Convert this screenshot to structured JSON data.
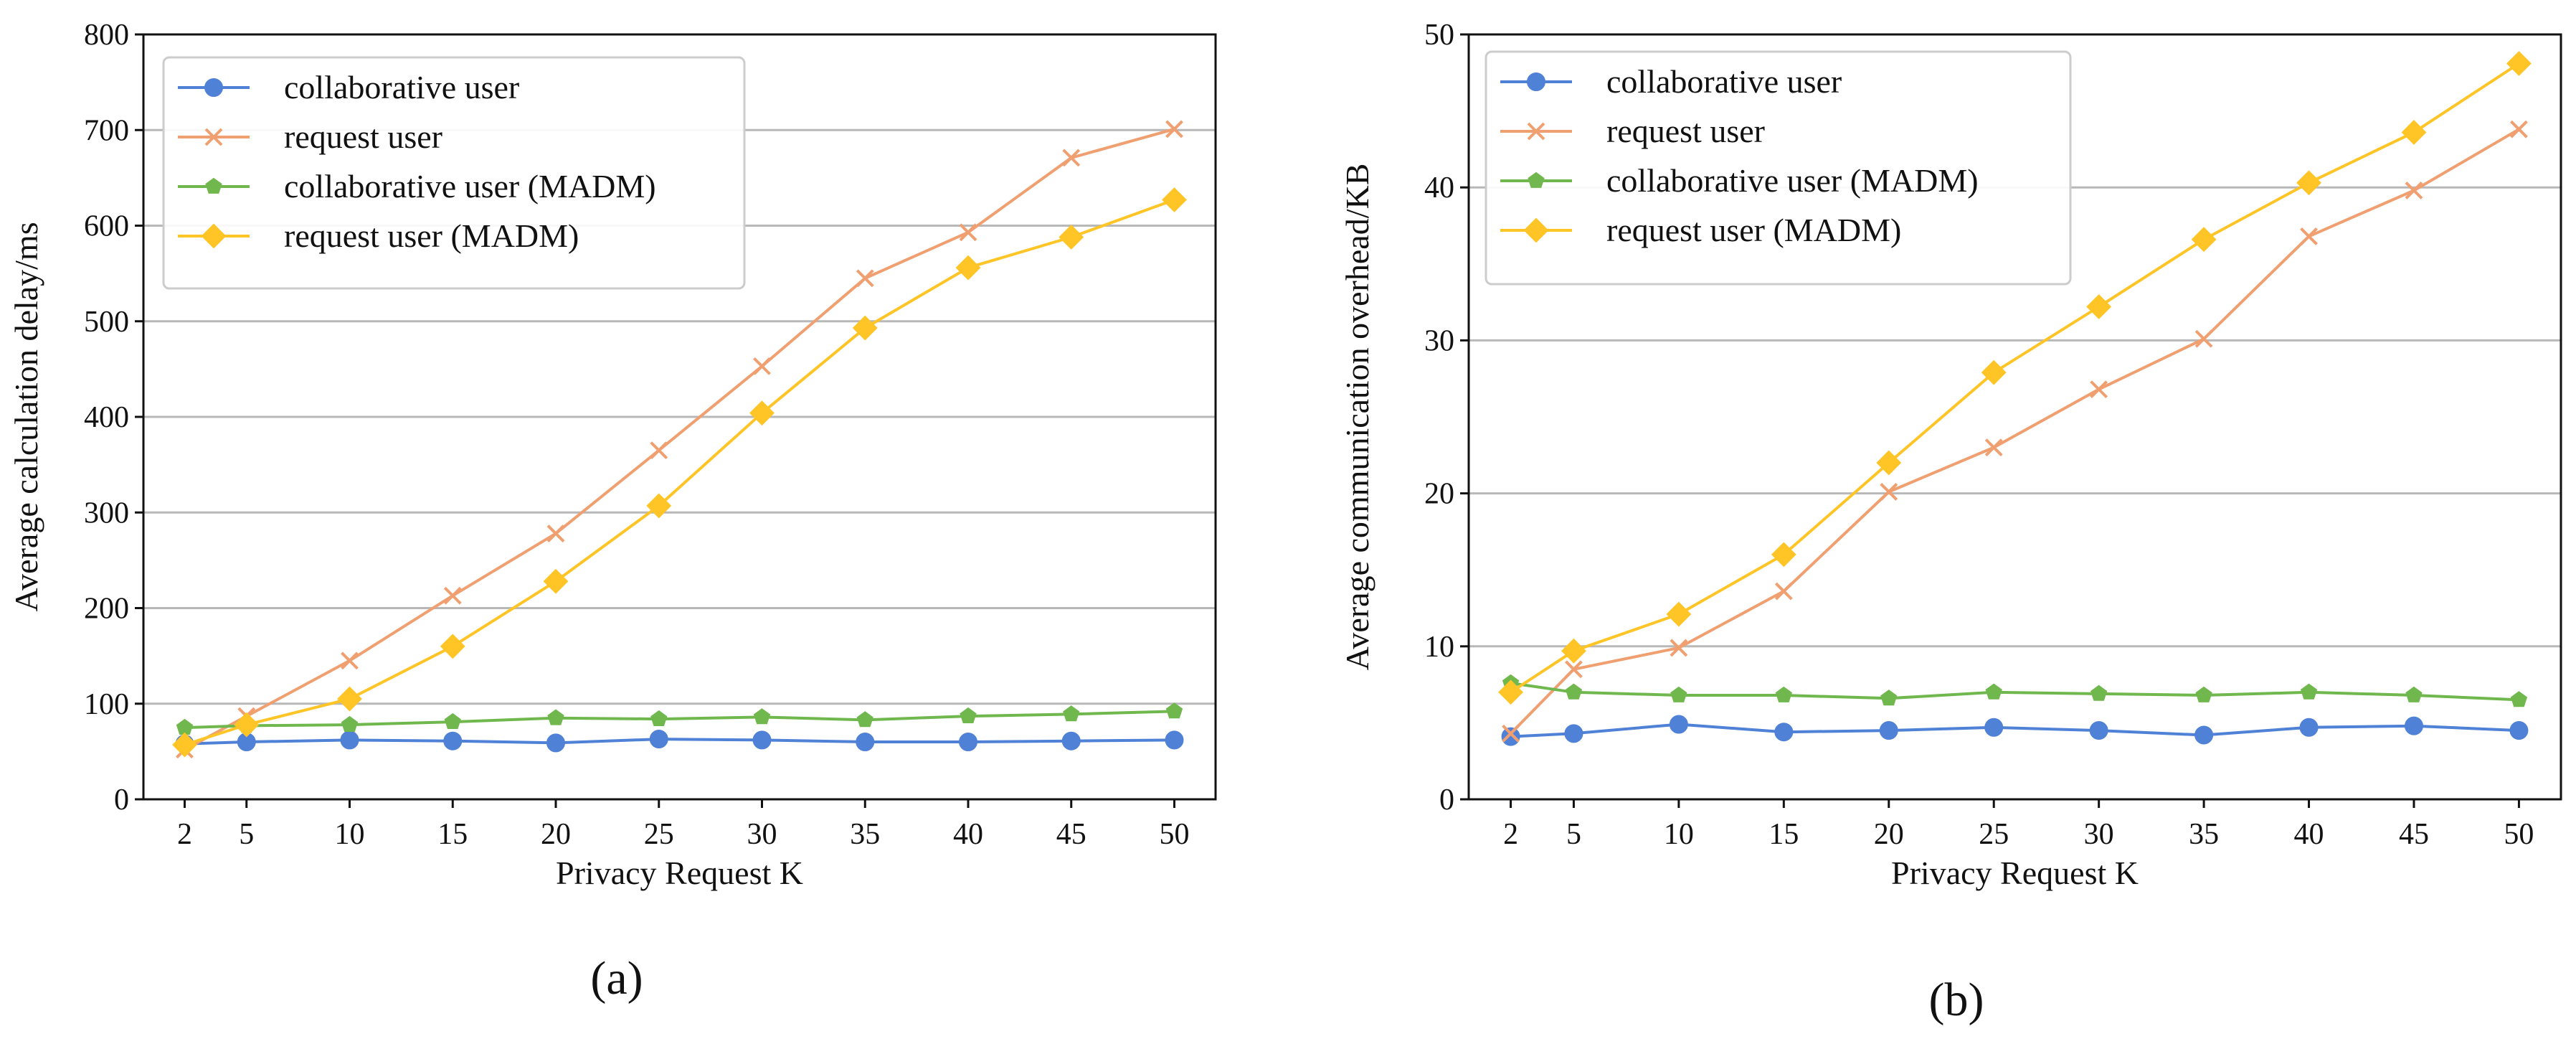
{
  "chart_data": [
    {
      "type": "line",
      "panel": "left",
      "caption": "(a)",
      "title": "",
      "xlabel": "Privacy Request K",
      "ylabel": "Average calculation delay/ms",
      "xticks": [
        2,
        5,
        10,
        15,
        20,
        25,
        30,
        35,
        40,
        45,
        50
      ],
      "yticks": [
        0,
        100,
        200,
        300,
        400,
        500,
        600,
        700,
        800
      ],
      "xlim": [
        0,
        52
      ],
      "ylim": [
        0,
        800
      ],
      "grid": "horizontal",
      "legend_position": "top-left",
      "series": [
        {
          "name": "collaborative user",
          "color": "#4f81d6",
          "marker": "circle",
          "x": [
            2,
            5,
            10,
            15,
            20,
            25,
            30,
            35,
            40,
            45,
            50
          ],
          "values": [
            58,
            60,
            62,
            61,
            59,
            63,
            62,
            60,
            60,
            61,
            62
          ]
        },
        {
          "name": "request user",
          "color": "#f0a070",
          "marker": "x",
          "x": [
            2,
            5,
            10,
            15,
            20,
            25,
            30,
            35,
            40,
            45,
            50
          ],
          "values": [
            52,
            87,
            145,
            213,
            278,
            365,
            453,
            545,
            593,
            671,
            701
          ]
        },
        {
          "name": "collaborative user (MADM)",
          "color": "#70b84e",
          "marker": "pentagon",
          "x": [
            2,
            5,
            10,
            15,
            20,
            25,
            30,
            35,
            40,
            45,
            50
          ],
          "values": [
            75,
            77,
            78,
            81,
            85,
            84,
            86,
            83,
            87,
            89,
            92
          ]
        },
        {
          "name": "request user (MADM)",
          "color": "#ffc425",
          "marker": "diamond",
          "x": [
            2,
            5,
            10,
            15,
            20,
            25,
            30,
            35,
            40,
            45,
            50
          ],
          "values": [
            57,
            78,
            105,
            160,
            228,
            307,
            404,
            493,
            556,
            588,
            627
          ]
        }
      ]
    },
    {
      "type": "line",
      "panel": "right",
      "caption": "(b)",
      "title": "",
      "xlabel": "Privacy Request K",
      "ylabel": "Average communication overhead/KB",
      "xticks": [
        2,
        5,
        10,
        15,
        20,
        25,
        30,
        35,
        40,
        45,
        50
      ],
      "yticks": [
        0,
        10,
        20,
        30,
        40,
        50
      ],
      "xlim": [
        0,
        52
      ],
      "ylim": [
        0,
        50
      ],
      "grid": "horizontal",
      "legend_position": "top-left",
      "series": [
        {
          "name": "collaborative user",
          "color": "#4f81d6",
          "marker": "circle",
          "x": [
            2,
            5,
            10,
            15,
            20,
            25,
            30,
            35,
            40,
            45,
            50
          ],
          "values": [
            4.1,
            4.3,
            4.9,
            4.4,
            4.5,
            4.7,
            4.5,
            4.2,
            4.7,
            4.8,
            4.5
          ]
        },
        {
          "name": "request user",
          "color": "#f0a070",
          "marker": "x",
          "x": [
            2,
            5,
            10,
            15,
            20,
            25,
            30,
            35,
            40,
            45,
            50
          ],
          "values": [
            4.3,
            8.5,
            9.9,
            13.6,
            20.1,
            23.0,
            26.8,
            30.1,
            36.8,
            39.8,
            43.8
          ]
        },
        {
          "name": "collaborative user (MADM)",
          "color": "#70b84e",
          "marker": "pentagon",
          "x": [
            2,
            5,
            10,
            15,
            20,
            25,
            30,
            35,
            40,
            45,
            50
          ],
          "values": [
            7.6,
            7.0,
            6.8,
            6.8,
            6.6,
            7.0,
            6.9,
            6.8,
            7.0,
            6.8,
            6.5
          ]
        },
        {
          "name": "request user (MADM)",
          "color": "#ffc425",
          "marker": "diamond",
          "x": [
            2,
            5,
            10,
            15,
            20,
            25,
            30,
            35,
            40,
            45,
            50
          ],
          "values": [
            7.0,
            9.7,
            12.1,
            16.0,
            22.0,
            27.9,
            32.2,
            36.6,
            40.3,
            43.6,
            48.1
          ]
        }
      ]
    }
  ]
}
